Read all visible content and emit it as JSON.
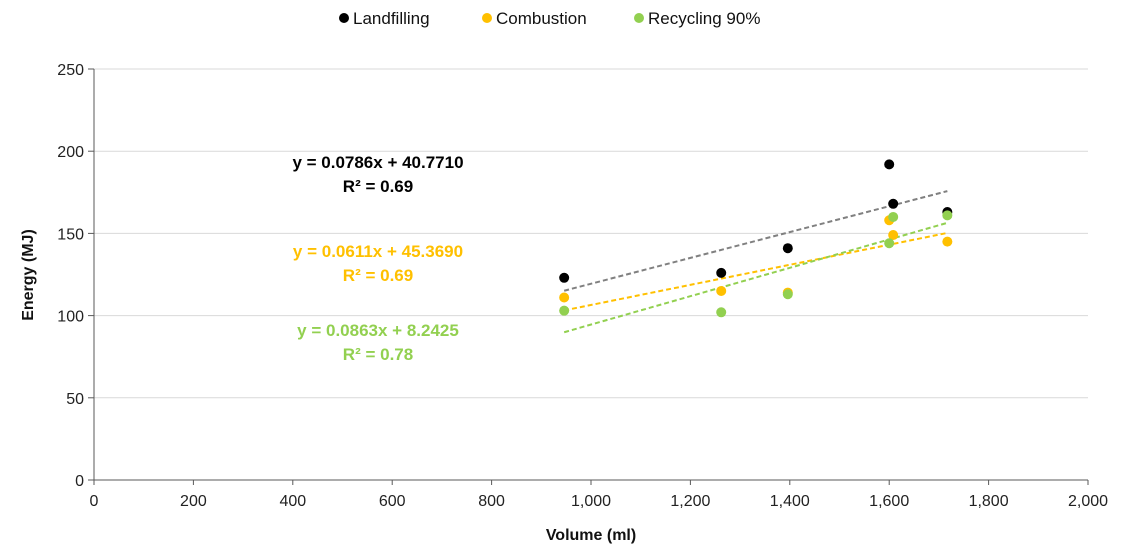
{
  "chart_data": {
    "type": "scatter",
    "xlabel": "Volume (ml)",
    "ylabel": "Energy (MJ)",
    "xlim": [
      0,
      2000
    ],
    "ylim": [
      0,
      250
    ],
    "xticks": [
      0,
      200,
      400,
      600,
      800,
      1000,
      1200,
      1400,
      1600,
      1800,
      2000
    ],
    "yticks": [
      0,
      50,
      100,
      150,
      200,
      250
    ],
    "xtick_labels": [
      "0",
      "200",
      "400",
      "600",
      "800",
      "1,000",
      "1,200",
      "1,400",
      "1,600",
      "1,800",
      "2,000"
    ],
    "ytick_labels": [
      "0",
      "50",
      "100",
      "150",
      "200",
      "250"
    ],
    "grid": "horizontal",
    "legend_position": "top",
    "series": [
      {
        "name": "Landfilling",
        "color": "#000000",
        "trend_color": "#808080",
        "x": [
          946,
          1262,
          1396,
          1600,
          1608,
          1717
        ],
        "y": [
          123,
          126,
          141,
          192,
          168,
          163
        ],
        "trend": {
          "slope": 0.0786,
          "intercept": 40.771,
          "equation": "y = 0.0786x + 40.7710",
          "r2": "R² = 0.69"
        }
      },
      {
        "name": "Combustion",
        "color": "#FFC000",
        "trend_color": "#FFC000",
        "x": [
          946,
          1262,
          1396,
          1600,
          1608,
          1717
        ],
        "y": [
          111,
          115,
          114,
          158,
          149,
          145
        ],
        "trend": {
          "slope": 0.0611,
          "intercept": 45.369,
          "equation": "y = 0.0611x + 45.3690",
          "r2": "R² = 0.69"
        }
      },
      {
        "name": "Recycling 90%",
        "color": "#92D050",
        "trend_color": "#92D050",
        "x": [
          946,
          1262,
          1396,
          1600,
          1608,
          1717
        ],
        "y": [
          103,
          102,
          113,
          144,
          160,
          161
        ],
        "trend": {
          "slope": 0.0863,
          "intercept": 8.2425,
          "equation": "y = 0.0863x + 8.2425",
          "r2": "R² = 0.78"
        }
      }
    ]
  }
}
